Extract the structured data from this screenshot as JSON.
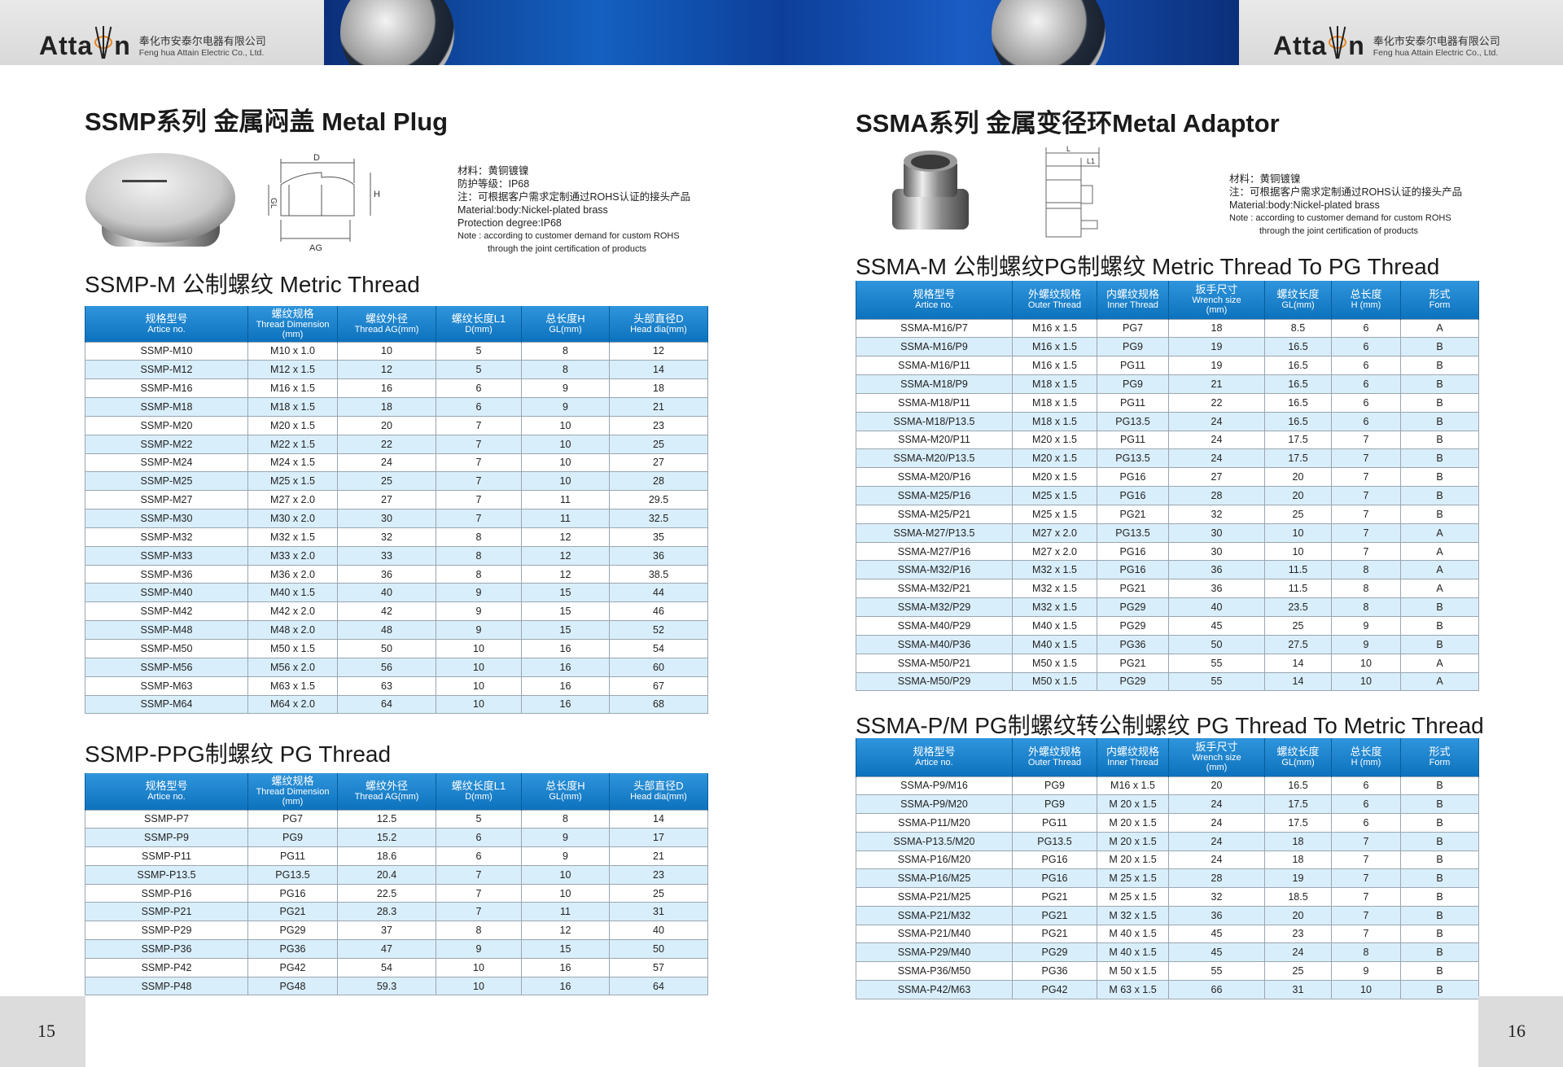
{
  "header": {
    "logo_word_left": "Atta",
    "logo_word_right": "n",
    "company_cn": "奉化市安泰尔电器有限公司",
    "company_en": "Feng hua Attain Electric Co., Ltd."
  },
  "colors": {
    "header_blue": "#1580c8",
    "row_alt": "#d9eefb",
    "accent_orange": "#e8821e"
  },
  "left": {
    "title": "SSMP系列  金属闷盖 Metal Plug",
    "diagram_labels": {
      "d": "D",
      "h": "H",
      "gl": "GL",
      "ag": "AG"
    },
    "notes": [
      "材料：黄铜镀镍",
      "防护等级：IP68",
      "注：可根据客户需求定制通过ROHS认证的接头产品",
      "Material:body:Nickel-plated brass",
      "Protection degree:IP68",
      "Note : according to customer demand for custom ROHS",
      "through the joint certification of products"
    ],
    "table1_title": "SSMP-M 公制螺纹  Metric Thread",
    "table2_title": "SSMP-PPG制螺纹  PG Thread",
    "headers": [
      [
        "规格型号",
        "Artice no."
      ],
      [
        "螺纹规格",
        "Thread Dimension",
        "(mm)"
      ],
      [
        "螺纹外径",
        "Thread AG(mm)"
      ],
      [
        "螺纹长度L1",
        "D(mm)"
      ],
      [
        "总长度H",
        "GL(mm)"
      ],
      [
        "头部直径D",
        "Head dia(mm)"
      ]
    ],
    "table1": [
      [
        "SSMP-M10",
        "M10 x 1.0",
        "10",
        "5",
        "8",
        "12"
      ],
      [
        "SSMP-M12",
        "M12 x 1.5",
        "12",
        "5",
        "8",
        "14"
      ],
      [
        "SSMP-M16",
        "M16 x 1.5",
        "16",
        "6",
        "9",
        "18"
      ],
      [
        "SSMP-M18",
        "M18 x 1.5",
        "18",
        "6",
        "9",
        "21"
      ],
      [
        "SSMP-M20",
        "M20 x 1.5",
        "20",
        "7",
        "10",
        "23"
      ],
      [
        "SSMP-M22",
        "M22 x 1.5",
        "22",
        "7",
        "10",
        "25"
      ],
      [
        "SSMP-M24",
        "M24 x 1.5",
        "24",
        "7",
        "10",
        "27"
      ],
      [
        "SSMP-M25",
        "M25 x 1.5",
        "25",
        "7",
        "10",
        "28"
      ],
      [
        "SSMP-M27",
        "M27 x 2.0",
        "27",
        "7",
        "11",
        "29.5"
      ],
      [
        "SSMP-M30",
        "M30 x 2.0",
        "30",
        "7",
        "11",
        "32.5"
      ],
      [
        "SSMP-M32",
        "M32 x 1.5",
        "32",
        "8",
        "12",
        "35"
      ],
      [
        "SSMP-M33",
        "M33 x 2.0",
        "33",
        "8",
        "12",
        "36"
      ],
      [
        "SSMP-M36",
        "M36 x 2.0",
        "36",
        "8",
        "12",
        "38.5"
      ],
      [
        "SSMP-M40",
        "M40 x 1.5",
        "40",
        "9",
        "15",
        "44"
      ],
      [
        "SSMP-M42",
        "M42 x 2.0",
        "42",
        "9",
        "15",
        "46"
      ],
      [
        "SSMP-M48",
        "M48 x 2.0",
        "48",
        "9",
        "15",
        "52"
      ],
      [
        "SSMP-M50",
        "M50 x 1.5",
        "50",
        "10",
        "16",
        "54"
      ],
      [
        "SSMP-M56",
        "M56 x 2.0",
        "56",
        "10",
        "16",
        "60"
      ],
      [
        "SSMP-M63",
        "M63 x 1.5",
        "63",
        "10",
        "16",
        "67"
      ],
      [
        "SSMP-M64",
        "M64 x 2.0",
        "64",
        "10",
        "16",
        "68"
      ]
    ],
    "table2": [
      [
        "SSMP-P7",
        "PG7",
        "12.5",
        "5",
        "8",
        "14"
      ],
      [
        "SSMP-P9",
        "PG9",
        "15.2",
        "6",
        "9",
        "17"
      ],
      [
        "SSMP-P11",
        "PG11",
        "18.6",
        "6",
        "9",
        "21"
      ],
      [
        "SSMP-P13.5",
        "PG13.5",
        "20.4",
        "7",
        "10",
        "23"
      ],
      [
        "SSMP-P16",
        "PG16",
        "22.5",
        "7",
        "10",
        "25"
      ],
      [
        "SSMP-P21",
        "PG21",
        "28.3",
        "7",
        "11",
        "31"
      ],
      [
        "SSMP-P29",
        "PG29",
        "37",
        "8",
        "12",
        "40"
      ],
      [
        "SSMP-P36",
        "PG36",
        "47",
        "9",
        "15",
        "50"
      ],
      [
        "SSMP-P42",
        "PG42",
        "54",
        "10",
        "16",
        "57"
      ],
      [
        "SSMP-P48",
        "PG48",
        "59.3",
        "10",
        "16",
        "64"
      ]
    ],
    "page_number": "15"
  },
  "right": {
    "title": "SSMA系列   金属变径环Metal Adaptor",
    "diagram_labels": {
      "l": "L",
      "l1": "L1"
    },
    "notes": [
      "材料：黄铜镀镍",
      "注：可根据客户需求定制通过ROHS认证的接头产品",
      "Material:body:Nickel-plated brass",
      "Note : according to customer demand for custom ROHS",
      "through the joint certification of products"
    ],
    "table1_title": "SSMA-M 公制螺纹PG制螺纹  Metric Thread To PG Thread",
    "table2_title": "SSMA-P/M  PG制螺纹转公制螺纹 PG Thread To Metric Thread",
    "headers": [
      [
        "规格型号",
        "Artice no."
      ],
      [
        "外螺纹规格",
        "Outer Thread"
      ],
      [
        "内螺纹规格",
        "Inner Thread"
      ],
      [
        "扳手尺寸",
        "Wrench size",
        "(mm)"
      ],
      [
        "螺纹长度",
        "GL(mm)"
      ],
      [
        "总长度",
        "H (mm)"
      ],
      [
        "形式",
        "Form"
      ]
    ],
    "table1": [
      [
        "SSMA-M16/P7",
        "M16 x 1.5",
        "PG7",
        "18",
        "8.5",
        "6",
        "A"
      ],
      [
        "SSMA-M16/P9",
        "M16 x 1.5",
        "PG9",
        "19",
        "16.5",
        "6",
        "B"
      ],
      [
        "SSMA-M16/P11",
        "M16 x 1.5",
        "PG11",
        "19",
        "16.5",
        "6",
        "B"
      ],
      [
        "SSMA-M18/P9",
        "M18 x 1.5",
        "PG9",
        "21",
        "16.5",
        "6",
        "B"
      ],
      [
        "SSMA-M18/P11",
        "M18 x 1.5",
        "PG11",
        "22",
        "16.5",
        "6",
        "B"
      ],
      [
        "SSMA-M18/P13.5",
        "M18 x 1.5",
        "PG13.5",
        "24",
        "16.5",
        "6",
        "B"
      ],
      [
        "SSMA-M20/P11",
        "M20 x 1.5",
        "PG11",
        "24",
        "17.5",
        "7",
        "B"
      ],
      [
        "SSMA-M20/P13.5",
        "M20 x 1.5",
        "PG13.5",
        "24",
        "17.5",
        "7",
        "B"
      ],
      [
        "SSMA-M20/P16",
        "M20 x 1.5",
        "PG16",
        "27",
        "20",
        "7",
        "B"
      ],
      [
        "SSMA-M25/P16",
        "M25 x 1.5",
        "PG16",
        "28",
        "20",
        "7",
        "B"
      ],
      [
        "SSMA-M25/P21",
        "M25 x 1.5",
        "PG21",
        "32",
        "25",
        "7",
        "B"
      ],
      [
        "SSMA-M27/P13.5",
        "M27 x 2.0",
        "PG13.5",
        "30",
        "10",
        "7",
        "A"
      ],
      [
        "SSMA-M27/P16",
        "M27 x 2.0",
        "PG16",
        "30",
        "10",
        "7",
        "A"
      ],
      [
        "SSMA-M32/P16",
        "M32 x 1.5",
        "PG16",
        "36",
        "11.5",
        "8",
        "A"
      ],
      [
        "SSMA-M32/P21",
        "M32 x 1.5",
        "PG21",
        "36",
        "11.5",
        "8",
        "A"
      ],
      [
        "SSMA-M32/P29",
        "M32 x 1.5",
        "PG29",
        "40",
        "23.5",
        "8",
        "B"
      ],
      [
        "SSMA-M40/P29",
        "M40 x 1.5",
        "PG29",
        "45",
        "25",
        "9",
        "B"
      ],
      [
        "SSMA-M40/P36",
        "M40 x 1.5",
        "PG36",
        "50",
        "27.5",
        "9",
        "B"
      ],
      [
        "SSMA-M50/P21",
        "M50 x 1.5",
        "PG21",
        "55",
        "14",
        "10",
        "A"
      ],
      [
        "SSMA-M50/P29",
        "M50 x 1.5",
        "PG29",
        "55",
        "14",
        "10",
        "A"
      ]
    ],
    "table2": [
      [
        "SSMA-P9/M16",
        "PG9",
        "M16 x 1.5",
        "20",
        "16.5",
        "6",
        "B"
      ],
      [
        "SSMA-P9/M20",
        "PG9",
        "M 20 x 1.5",
        "24",
        "17.5",
        "6",
        "B"
      ],
      [
        "SSMA-P11/M20",
        "PG11",
        "M 20 x 1.5",
        "24",
        "17.5",
        "6",
        "B"
      ],
      [
        "SSMA-P13.5/M20",
        "PG13.5",
        "M 20 x 1.5",
        "24",
        "18",
        "7",
        "B"
      ],
      [
        "SSMA-P16/M20",
        "PG16",
        "M 20 x 1.5",
        "24",
        "18",
        "7",
        "B"
      ],
      [
        "SSMA-P16/M25",
        "PG16",
        "M 25 x 1.5",
        "28",
        "19",
        "7",
        "B"
      ],
      [
        "SSMA-P21/M25",
        "PG21",
        "M 25 x 1.5",
        "32",
        "18.5",
        "7",
        "B"
      ],
      [
        "SSMA-P21/M32",
        "PG21",
        "M 32 x 1.5",
        "36",
        "20",
        "7",
        "B"
      ],
      [
        "SSMA-P21/M40",
        "PG21",
        "M 40 x 1.5",
        "45",
        "23",
        "7",
        "B"
      ],
      [
        "SSMA-P29/M40",
        "PG29",
        "M 40 x 1.5",
        "45",
        "24",
        "8",
        "B"
      ],
      [
        "SSMA-P36/M50",
        "PG36",
        "M 50 x 1.5",
        "55",
        "25",
        "9",
        "B"
      ],
      [
        "SSMA-P42/M63",
        "PG42",
        "M 63 x 1.5",
        "66",
        "31",
        "10",
        "B"
      ]
    ],
    "page_number": "16"
  }
}
